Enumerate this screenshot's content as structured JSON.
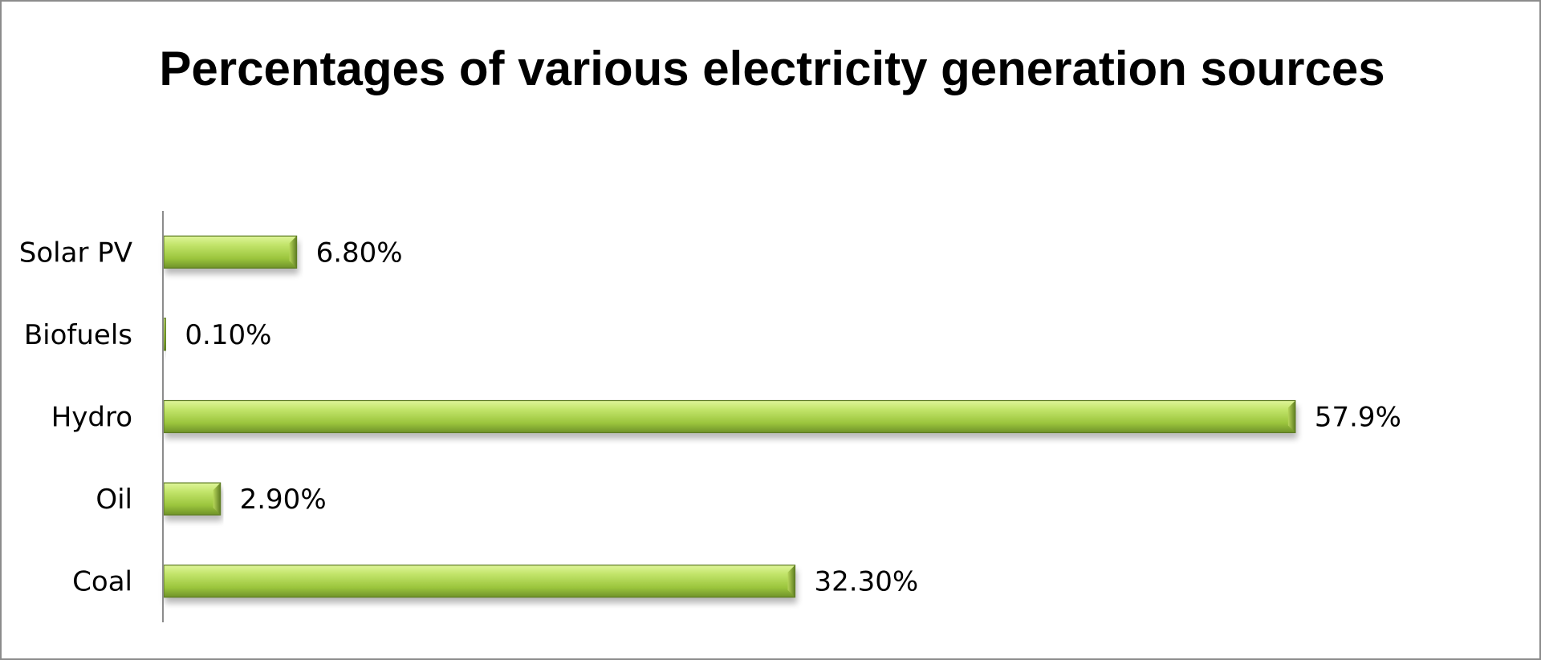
{
  "chart_data": {
    "type": "bar",
    "orientation": "horizontal",
    "title": "Percentages of various electricity generation sources",
    "categories": [
      "Solar PV",
      "Biofuels",
      "Hydro",
      "Oil",
      "Coal"
    ],
    "values": [
      6.8,
      0.1,
      57.9,
      2.9,
      32.3
    ],
    "value_labels": [
      "6.80%",
      "0.10%",
      "57.9%",
      "2.90%",
      "32.30%"
    ],
    "xlim": [
      0,
      60
    ],
    "xlabel": "",
    "ylabel": "",
    "grid": false,
    "legend": "none",
    "bar_color": "#9bc53d"
  }
}
